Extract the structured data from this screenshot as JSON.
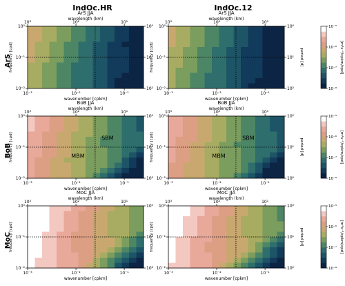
{
  "column_titles": [
    "IndOc.HR",
    "IndOc.12"
  ],
  "row_labels": [
    "ArS",
    "BoB",
    "MoC"
  ],
  "colors": {
    "colormap": [
      "#0c2545",
      "#123a5a",
      "#1d5567",
      "#2e6e6c",
      "#4d8665",
      "#7b9d5e",
      "#a8ac62",
      "#c9a870",
      "#dc9f84",
      "#e8a89a",
      "#f3c8c0",
      "#ffffff"
    ],
    "guide_line": "#000000"
  },
  "chart_data": {
    "type": "heatmap",
    "description_axes": {
      "xlabel_bottom": "wavenumber [cpkm]",
      "xlabel_top": "wavelength (km)",
      "ylabel_left": "frequency [cpd]",
      "ylabel_right": "period [d]",
      "colorbar_label": "[m²s⁻²/cpkm/cpd]",
      "x_ticks": [
        "10⁻³",
        "10⁻²",
        "10⁻¹"
      ],
      "x_top_ticks": [
        "10³",
        "10²",
        "10¹"
      ],
      "y_ticks": [
        "10⁻²",
        "10⁻¹",
        "10⁰"
      ],
      "y_right_ticks": [
        "10²",
        "10¹",
        "10⁰"
      ],
      "colorbar_ticks": [
        "10⁻⁵",
        "10⁻⁶",
        "10⁻⁷",
        "10⁻⁸"
      ],
      "xlim": [
        0.001,
        0.25
      ],
      "ylim": [
        0.01,
        1
      ],
      "xscale": "log",
      "yscale": "log",
      "guide_x": 0.025,
      "guide_y": 0.1,
      "colorbar_range_log10": [
        -8,
        -5
      ]
    },
    "panels": [
      {
        "title": "ArS JJA",
        "column": 0,
        "row": 0,
        "peak_log10": -6.3,
        "slope": 0.95,
        "diag_offset": 0.35,
        "annotations": []
      },
      {
        "title": "ArS JJA",
        "column": 1,
        "row": 0,
        "peak_log10": -6.4,
        "slope": 0.95,
        "diag_offset": 0.35,
        "annotations": []
      },
      {
        "title": "BoB JJA",
        "column": 0,
        "row": 1,
        "peak_log10": -5.6,
        "slope": 0.9,
        "diag_offset": 0.55,
        "annotations": [
          {
            "text": "SBM",
            "x": 0.045,
            "y": 0.17
          },
          {
            "text": "MBM",
            "x": 0.011,
            "y": 0.045
          }
        ]
      },
      {
        "title": "BoB JJA",
        "column": 1,
        "row": 1,
        "peak_log10": -5.7,
        "slope": 0.9,
        "diag_offset": 0.55,
        "annotations": [
          {
            "text": "SBM",
            "x": 0.045,
            "y": 0.17
          },
          {
            "text": "MBM",
            "x": 0.011,
            "y": 0.045
          }
        ]
      },
      {
        "title": "MoC JJA",
        "column": 0,
        "row": 2,
        "peak_log10": -5.0,
        "slope": 0.9,
        "diag_offset": 0.75,
        "annotations": []
      },
      {
        "title": "MoC JJA",
        "column": 1,
        "row": 2,
        "peak_log10": -5.1,
        "slope": 0.9,
        "diag_offset": 0.75,
        "annotations": []
      }
    ]
  }
}
